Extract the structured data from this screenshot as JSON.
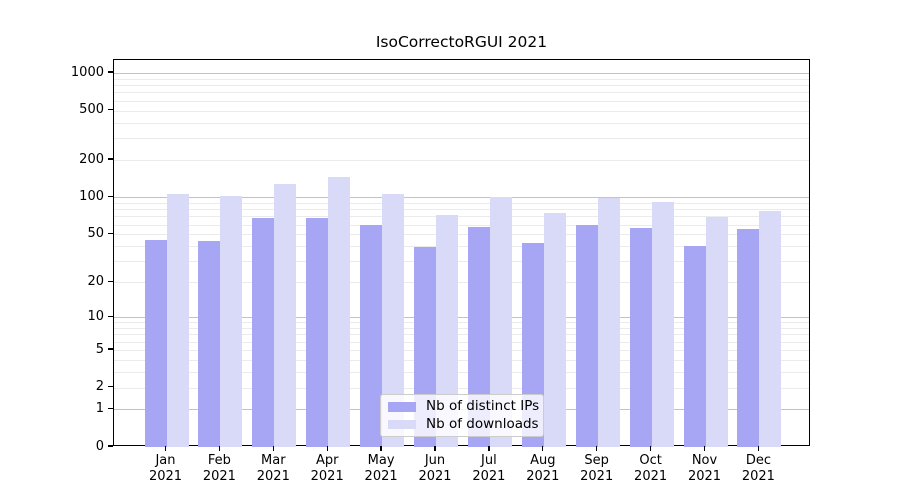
{
  "chart_data": {
    "type": "bar",
    "title": "IsoCorrectoRGUI 2021",
    "x_categories": [
      "Jan",
      "Feb",
      "Mar",
      "Apr",
      "May",
      "Jun",
      "Jul",
      "Aug",
      "Sep",
      "Oct",
      "Nov",
      "Dec"
    ],
    "x_year": "2021",
    "series": [
      {
        "name": "Nb of distinct IPs",
        "color": "#a6a6f4",
        "values": [
          45,
          44,
          68,
          68,
          60,
          39,
          57,
          42,
          60,
          56,
          40,
          55
        ]
      },
      {
        "name": "Nb of downloads",
        "color": "#d9d9f8",
        "values": [
          107,
          103,
          128,
          146,
          106,
          72,
          101,
          75,
          98,
          92,
          69,
          78
        ]
      }
    ],
    "yscale": "log1p",
    "y_ticks": [
      0,
      1,
      2,
      5,
      10,
      20,
      50,
      100,
      200,
      500,
      1000
    ],
    "ylim": [
      0,
      1270
    ],
    "grid": true,
    "legend_position": "lower-center",
    "colors": {
      "distinct_ips": "#a6a6f4",
      "downloads": "#d9d9f8",
      "grid_major": "#c3c3c3",
      "grid_minor": "#ebebeb",
      "axis": "#000000"
    }
  }
}
